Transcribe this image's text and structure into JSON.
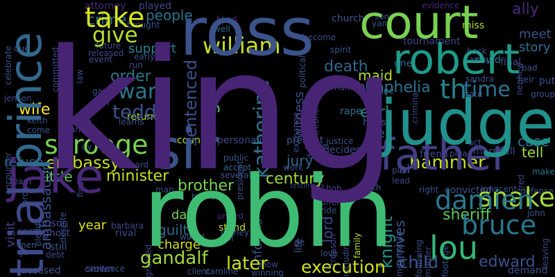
{
  "words": [
    {
      "t": "king",
      "c": "#482475"
    },
    {
      "t": "robin",
      "c": "#3fbc73"
    },
    {
      "t": "ross",
      "c": "#3b528b"
    },
    {
      "t": "court",
      "c": "#7ad151"
    },
    {
      "t": "judge",
      "c": "#21918c"
    },
    {
      "t": "robert",
      "c": "#1e9b8a"
    },
    {
      "t": "father",
      "c": "#433e85"
    },
    {
      "t": "sir",
      "c": "#3b528b"
    },
    {
      "t": "jake",
      "c": "#482878"
    },
    {
      "t": "prince",
      "c": "#31688e"
    },
    {
      "t": "trial",
      "c": "#3e4989"
    },
    {
      "t": "take",
      "c": "#d2e21b"
    },
    {
      "t": "give",
      "c": "#b5de2b"
    },
    {
      "t": "william",
      "c": "#c8e020"
    },
    {
      "t": "th",
      "c": "#26828e"
    },
    {
      "t": "time",
      "c": "#2c728e"
    },
    {
      "t": "war",
      "c": "#2a788e"
    },
    {
      "t": "scrooge",
      "c": "#7ad151"
    },
    {
      "t": "teddy",
      "c": "#3b528b"
    },
    {
      "t": "order",
      "c": "#2a788e"
    },
    {
      "t": "death",
      "c": "#31688e"
    },
    {
      "t": "sentenced",
      "c": "#3b528b"
    },
    {
      "t": "katherine",
      "c": "#2c728e"
    },
    {
      "t": "albright",
      "c": "#5ec962"
    },
    {
      "t": "snake",
      "c": "#a0da39"
    },
    {
      "t": "damien",
      "c": "#2a788e"
    },
    {
      "t": "bruce",
      "c": "#2a788e"
    },
    {
      "t": "lou",
      "c": "#35b779"
    },
    {
      "t": "hammer",
      "c": "#c8e020"
    },
    {
      "t": "execution",
      "c": "#d2e21b"
    },
    {
      "t": "gandalf",
      "c": "#a0da39"
    },
    {
      "t": "later",
      "c": "#c8e020"
    },
    {
      "t": "child",
      "c": "#3b528b"
    },
    {
      "t": "edward",
      "c": "#3b528b"
    },
    {
      "t": "embassy",
      "c": "#c8e020"
    },
    {
      "t": "minister",
      "c": "#c8e020"
    },
    {
      "t": "brother",
      "c": "#7ad151"
    },
    {
      "t": "century",
      "c": "#a0da39"
    },
    {
      "t": "knight",
      "c": "#21918c"
    },
    {
      "t": "sheriff",
      "c": "#5ec962"
    },
    {
      "t": "ophelia",
      "c": "#2c728e"
    },
    {
      "t": "earl",
      "c": "#21918c"
    },
    {
      "t": "case",
      "c": "#2c728e"
    },
    {
      "t": "tell",
      "c": "#a0da39"
    },
    {
      "t": "story",
      "c": "#2c728e"
    },
    {
      "t": "meet",
      "c": "#3b528b"
    },
    {
      "t": "ally",
      "c": "#482878"
    },
    {
      "t": "maid",
      "c": "#b5de2b"
    },
    {
      "t": "people",
      "c": "#2c728e"
    },
    {
      "t": "crime",
      "c": "#2c728e"
    },
    {
      "t": "support",
      "c": "#26828e"
    },
    {
      "t": "wife",
      "c": "#fde725"
    },
    {
      "t": "ambassador",
      "c": "#3b528b"
    },
    {
      "t": "refuse",
      "c": "#31688e"
    },
    {
      "t": "little",
      "c": "#5ec962"
    },
    {
      "t": "year",
      "c": "#dfe318"
    },
    {
      "t": "day",
      "c": "#7ad151"
    },
    {
      "t": "guilty",
      "c": "#31688e"
    },
    {
      "t": "charge",
      "c": "#d2e21b"
    },
    {
      "t": "witness",
      "c": "#3b528b"
    },
    {
      "t": "jury",
      "c": "#31688e"
    },
    {
      "t": "lord",
      "c": "#3e4989"
    },
    {
      "t": "informs",
      "c": "#3b528b"
    },
    {
      "t": "arrives",
      "c": "#3b528b"
    },
    {
      "t": "visit",
      "c": "#433e85"
    },
    {
      "t": "return",
      "c": "#a0da39"
    },
    {
      "t": "present",
      "c": "#3b528b"
    },
    {
      "t": "country",
      "c": "#bddf26"
    },
    {
      "t": "personality",
      "c": "#3e4989"
    },
    {
      "t": "fall",
      "c": "#31688e"
    },
    {
      "t": "al",
      "c": "#3e4989"
    },
    {
      "t": "el",
      "c": "#31688e"
    },
    {
      "t": "rape",
      "c": "#2c728e"
    },
    {
      "t": "decides",
      "c": "#3b528b"
    },
    {
      "t": "june",
      "c": "#2c728e"
    },
    {
      "t": "name",
      "c": "#3b528b"
    },
    {
      "t": "one",
      "c": "#31688e"
    },
    {
      "t": "final",
      "c": "#3e4989"
    },
    {
      "t": "could",
      "c": "#2c728e"
    },
    {
      "t": "miss",
      "c": "#b5de2b"
    },
    {
      "t": "tournament",
      "c": "#3e4989"
    },
    {
      "t": "attorney",
      "c": "#482878"
    },
    {
      "t": "played",
      "c": "#3e4989"
    },
    {
      "t": "evidence",
      "c": "#482878"
    },
    {
      "t": "church",
      "c": "#3b528b"
    },
    {
      "t": "early",
      "c": "#3b528b"
    },
    {
      "t": "future",
      "c": "#3b528b"
    },
    {
      "t": "released",
      "c": "#3e4989"
    },
    {
      "t": "event",
      "c": "#3b528b"
    },
    {
      "t": "become",
      "c": "#3e4989"
    },
    {
      "t": "spirit",
      "c": "#3b528b"
    },
    {
      "t": "blind",
      "c": "#482878"
    },
    {
      "t": "well",
      "c": "#2c728e"
    },
    {
      "t": "richard",
      "c": "#3b528b"
    },
    {
      "t": "accept",
      "c": "#31688e"
    },
    {
      "t": "stand",
      "c": "#bddf26"
    },
    {
      "t": "united",
      "c": "#482878"
    },
    {
      "t": "barbara",
      "c": "#3e4989"
    },
    {
      "t": "rival",
      "c": "#3e4989"
    },
    {
      "t": "crown",
      "c": "#3e4989"
    },
    {
      "t": "accused",
      "c": "#3b528b"
    },
    {
      "t": "sentence",
      "c": "#3b528b"
    },
    {
      "t": "client",
      "c": "#3b528b"
    },
    {
      "t": "caroline",
      "c": "#3b528b"
    },
    {
      "t": "show",
      "c": "#3e4989"
    },
    {
      "t": "winning",
      "c": "#3b528b"
    },
    {
      "t": "demand",
      "c": "#3b528b"
    },
    {
      "t": "convicted",
      "c": "#3b528b"
    },
    {
      "t": "innocent",
      "c": "#3b528b"
    },
    {
      "t": "defense",
      "c": "#3b528b"
    },
    {
      "t": "leaving",
      "c": "#3e4989"
    },
    {
      "t": "john",
      "c": "#3b528b"
    },
    {
      "t": "make",
      "c": "#2c728e"
    },
    {
      "t": "marshall",
      "c": "#3b528b"
    },
    {
      "t": "friend",
      "c": "#3e4989"
    },
    {
      "t": "plea",
      "c": "#3b528b"
    },
    {
      "t": "act",
      "c": "#3b528b"
    },
    {
      "t": "plan",
      "c": "#3b528b"
    },
    {
      "t": "lead",
      "c": "#3e4989"
    },
    {
      "t": "birth",
      "c": "#3b528b"
    },
    {
      "t": "right",
      "c": "#3b528b"
    },
    {
      "t": "testimony",
      "c": "#3e4989"
    },
    {
      "t": "bob",
      "c": "#3e4989"
    },
    {
      "t": "offer",
      "c": "#3b528b"
    },
    {
      "t": "ride",
      "c": "#3b528b"
    },
    {
      "t": "treason",
      "c": "#3e4989"
    },
    {
      "t": "including",
      "c": "#3b528b"
    },
    {
      "t": "family",
      "c": "#bddf26"
    },
    {
      "t": "life",
      "c": "#3b528b"
    },
    {
      "t": "de",
      "c": "#3b528b"
    },
    {
      "t": "love",
      "c": "#3b528b"
    },
    {
      "t": "meanwhile",
      "c": "#3b528b"
    },
    {
      "t": "following",
      "c": "#3b528b"
    },
    {
      "t": "murder",
      "c": "#3e4989"
    },
    {
      "t": "footage",
      "c": "#3b528b"
    },
    {
      "t": "home",
      "c": "#3b528b"
    },
    {
      "t": "man",
      "c": "#3e4989"
    },
    {
      "t": "cell",
      "c": "#3b528b"
    },
    {
      "t": "money",
      "c": "#3b528b"
    },
    {
      "t": "would",
      "c": "#3b528b"
    },
    {
      "t": "prison",
      "c": "#3e4989"
    },
    {
      "t": "ghost",
      "c": "#3e4989"
    },
    {
      "t": "still",
      "c": "#3b528b"
    },
    {
      "t": "debt",
      "c": "#3e4989"
    },
    {
      "t": "seen",
      "c": "#3b528b"
    },
    {
      "t": "men",
      "c": "#3b528b"
    },
    {
      "t": "go",
      "c": "#3b528b"
    },
    {
      "t": "granted",
      "c": "#3e4989"
    },
    {
      "t": "despite",
      "c": "#3b528b"
    },
    {
      "t": "pleads",
      "c": "#3b528b"
    },
    {
      "t": "force",
      "c": "#3b528b"
    },
    {
      "t": "team",
      "c": "#3b528b"
    },
    {
      "t": "encounter",
      "c": "#3b528b"
    },
    {
      "t": "jensen",
      "c": "#3e4989"
    },
    {
      "t": "keith",
      "c": "#3b528b"
    },
    {
      "t": "come",
      "c": "#3b528b"
    },
    {
      "t": "made",
      "c": "#3b528b"
    },
    {
      "t": "arrest",
      "c": "#3b528b"
    },
    {
      "t": "learns",
      "c": "#3b528b"
    },
    {
      "t": "gain",
      "c": "#3b528b"
    },
    {
      "t": "turn",
      "c": "#3b528b"
    },
    {
      "t": "run",
      "c": "#3b528b"
    },
    {
      "t": "law",
      "c": "#3e4989"
    },
    {
      "t": "due",
      "c": "#3b528b"
    },
    {
      "t": "celebrate",
      "c": "#3b528b"
    },
    {
      "t": "committed",
      "c": "#3e4989"
    },
    {
      "t": "brought",
      "c": "#3b528b"
    },
    {
      "t": "president",
      "c": "#3b528b"
    },
    {
      "t": "public",
      "c": "#3b528b"
    },
    {
      "t": "several",
      "c": "#3b528b"
    },
    {
      "t": "work",
      "c": "#3b528b"
    },
    {
      "t": "leave",
      "c": "#3b528b"
    },
    {
      "t": "justice",
      "c": "#3b528b"
    },
    {
      "t": "exchange",
      "c": "#3e4989"
    },
    {
      "t": "political",
      "c": "#3b528b"
    },
    {
      "t": "declares",
      "c": "#3b528b"
    },
    {
      "t": "throne",
      "c": "#3b528b"
    },
    {
      "t": "josh",
      "c": "#3b528b"
    },
    {
      "t": "house",
      "c": "#3b528b"
    },
    {
      "t": "criminal",
      "c": "#3e4989"
    },
    {
      "t": "state",
      "c": "#3b528b"
    },
    {
      "t": "sandra",
      "c": "#3b528b"
    },
    {
      "t": "heir",
      "c": "#3b528b"
    },
    {
      "t": "put",
      "c": "#3b528b"
    },
    {
      "t": "group",
      "c": "#3b528b"
    },
    {
      "t": "bad",
      "c": "#3b528b"
    },
    {
      "t": "nephew",
      "c": "#3e4989"
    },
    {
      "t": "back",
      "c": "#3b528b"
    },
    {
      "t": "away",
      "c": "#3b528b"
    },
    {
      "t": "son",
      "c": "#3b528b"
    },
    {
      "t": "yang",
      "c": "#3b528b"
    },
    {
      "t": "fred",
      "c": "#3e4989"
    },
    {
      "t": "dy",
      "c": "#3b528b"
    },
    {
      "t": "find",
      "c": "#3b528b"
    }
  ]
}
